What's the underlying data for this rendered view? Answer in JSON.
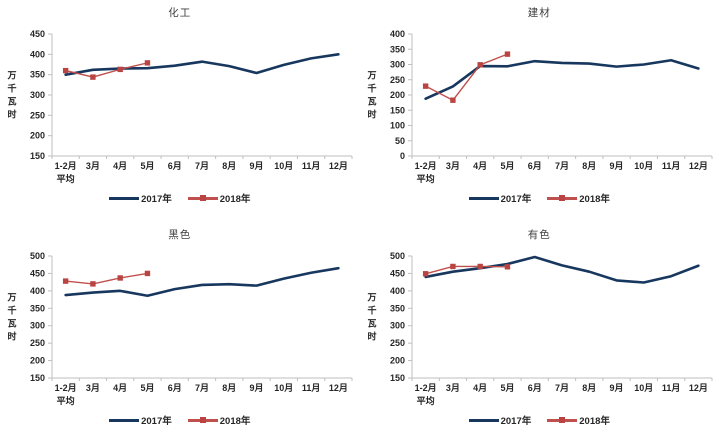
{
  "colors": {
    "series_2017": "#17375E",
    "series_2018": "#C0504D",
    "marker_2018": "#B94441",
    "axis": "#BFBFBF",
    "tick_text": "#262626",
    "title_text": "#404040",
    "background": "#FFFFFF"
  },
  "chart_data": [
    {
      "type": "line",
      "title": "化工",
      "ylabel": "万千瓦时",
      "xlabel": "",
      "ylim": [
        150,
        450
      ],
      "ytick_step": 50,
      "grid": false,
      "legend_position": "bottom",
      "categories": [
        "1-2月\n平均",
        "3月",
        "4月",
        "5月",
        "6月",
        "7月",
        "8月",
        "9月",
        "10月",
        "11月",
        "12月"
      ],
      "series": [
        {
          "name": "2017年",
          "marker": "none",
          "values": [
            350,
            362,
            365,
            366,
            372,
            382,
            371,
            354,
            374,
            390,
            400
          ]
        },
        {
          "name": "2018年",
          "marker": "square",
          "values": [
            360,
            344,
            363,
            379
          ]
        }
      ]
    },
    {
      "type": "line",
      "title": "建材",
      "ylabel": "万千瓦时",
      "xlabel": "",
      "ylim": [
        0,
        400
      ],
      "ytick_step": 50,
      "grid": false,
      "legend_position": "bottom",
      "categories": [
        "1-2月\n平均",
        "3月",
        "4月",
        "5月",
        "6月",
        "7月",
        "8月",
        "9月",
        "10月",
        "11月",
        "12月"
      ],
      "series": [
        {
          "name": "2017年",
          "marker": "none",
          "values": [
            188,
            228,
            295,
            294,
            311,
            305,
            303,
            293,
            300,
            314,
            287
          ]
        },
        {
          "name": "2018年",
          "marker": "square",
          "values": [
            229,
            183,
            299,
            334
          ]
        }
      ]
    },
    {
      "type": "line",
      "title": "黑色",
      "ylabel": "万千瓦时",
      "xlabel": "",
      "ylim": [
        150,
        500
      ],
      "ytick_step": 50,
      "grid": false,
      "legend_position": "bottom",
      "categories": [
        "1-2月\n平均",
        "3月",
        "4月",
        "5月",
        "6月",
        "7月",
        "8月",
        "9月",
        "10月",
        "11月",
        "12月"
      ],
      "series": [
        {
          "name": "2017年",
          "marker": "none",
          "values": [
            388,
            395,
            400,
            386,
            405,
            417,
            419,
            415,
            435,
            452,
            465
          ]
        },
        {
          "name": "2018年",
          "marker": "square",
          "values": [
            428,
            420,
            437,
            450
          ]
        }
      ]
    },
    {
      "type": "line",
      "title": "有色",
      "ylabel": "万千瓦时",
      "xlabel": "",
      "ylim": [
        150,
        500
      ],
      "ytick_step": 50,
      "grid": false,
      "legend_position": "bottom",
      "categories": [
        "1-2月\n平均",
        "3月",
        "4月",
        "5月",
        "6月",
        "7月",
        "8月",
        "9月",
        "10月",
        "11月",
        "12月"
      ],
      "series": [
        {
          "name": "2017年",
          "marker": "none",
          "values": [
            440,
            455,
            465,
            477,
            497,
            473,
            455,
            430,
            424,
            442,
            472
          ]
        },
        {
          "name": "2018年",
          "marker": "square",
          "values": [
            449,
            470,
            470,
            469
          ]
        }
      ]
    }
  ]
}
